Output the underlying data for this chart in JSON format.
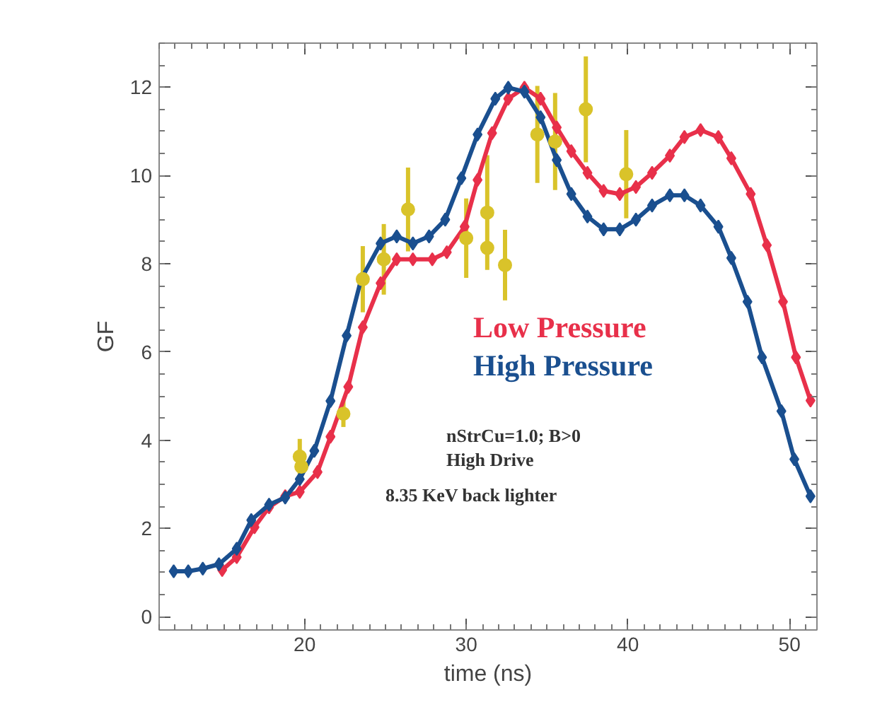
{
  "chart_data": {
    "type": "line",
    "xlabel": "time (ns)",
    "ylabel": "GF",
    "xlim": [
      11,
      51.7
    ],
    "ylim": [
      -0.3,
      13
    ],
    "xticks": [
      20,
      30,
      40,
      50
    ],
    "yticks": [
      0,
      2,
      4,
      6,
      8,
      10,
      12
    ],
    "grid": false,
    "legend": "right",
    "annotations": [
      "nStrCu=1.0; B>0",
      "High Drive",
      "8.35 KeV back lighter"
    ],
    "series": [
      {
        "name": "Low Pressure",
        "color": "#e8304a",
        "marker": "diamond",
        "x": [
          14.9,
          15.8,
          16.9,
          17.8,
          18.8,
          19.7,
          20.8,
          21.6,
          22.7,
          23.6,
          24.7,
          25.7,
          26.7,
          27.9,
          28.8,
          29.9,
          30.7,
          31.6,
          32.6,
          33.6,
          34.6,
          35.6,
          36.5,
          37.5,
          38.5,
          39.5,
          40.5,
          41.5,
          42.6,
          43.5,
          44.5,
          45.6,
          46.4,
          47.6,
          48.6,
          49.6,
          50.4,
          51.3
        ],
        "values": [
          1.06,
          1.35,
          2.03,
          2.48,
          2.73,
          2.83,
          3.28,
          4.08,
          5.21,
          6.56,
          7.56,
          8.1,
          8.1,
          8.1,
          8.26,
          8.84,
          9.9,
          10.96,
          11.74,
          11.99,
          11.74,
          11.09,
          10.55,
          10.06,
          9.65,
          9.58,
          9.74,
          10.06,
          10.45,
          10.87,
          11.03,
          10.87,
          10.39,
          9.58,
          8.42,
          7.14,
          5.88,
          4.9
        ]
      },
      {
        "name": "High Pressure",
        "color": "#1a4f8f",
        "marker": "diamond",
        "x": [
          11.9,
          12.8,
          13.7,
          14.7,
          15.8,
          16.7,
          17.8,
          18.8,
          19.7,
          20.6,
          21.6,
          22.6,
          23.5,
          24.7,
          25.7,
          26.7,
          27.7,
          28.7,
          29.7,
          30.7,
          31.8,
          32.6,
          33.6,
          34.6,
          35.6,
          36.5,
          37.5,
          38.5,
          39.5,
          40.5,
          41.5,
          42.6,
          43.5,
          44.5,
          45.6,
          46.4,
          47.4,
          48.3,
          49.5,
          50.3,
          51.3
        ],
        "values": [
          1.03,
          1.03,
          1.09,
          1.19,
          1.54,
          2.19,
          2.54,
          2.7,
          3.12,
          3.76,
          4.89,
          6.37,
          7.65,
          8.46,
          8.62,
          8.46,
          8.62,
          9.0,
          9.94,
          10.93,
          11.74,
          11.99,
          11.9,
          11.32,
          10.35,
          9.58,
          9.07,
          8.78,
          8.78,
          9.0,
          9.32,
          9.55,
          9.55,
          9.32,
          8.84,
          8.13,
          7.14,
          5.88,
          4.66,
          3.57,
          2.73
        ]
      },
      {
        "color": "#d9c32a",
        "type": "scatter",
        "marker": "circle",
        "x": [
          19.7,
          19.8,
          22.4,
          23.6,
          24.9,
          26.4,
          30.0,
          31.3,
          31.3,
          32.4,
          34.4,
          35.5,
          37.4,
          39.9
        ],
        "values": [
          3.63,
          3.4,
          4.6,
          7.65,
          8.1,
          9.23,
          8.58,
          9.16,
          8.36,
          7.97,
          10.93,
          10.77,
          11.5,
          10.03
        ],
        "errors": [
          0.4,
          null,
          0.3,
          0.75,
          0.8,
          0.95,
          0.9,
          1.3,
          null,
          0.8,
          1.1,
          1.1,
          1.2,
          1.0
        ]
      }
    ]
  }
}
